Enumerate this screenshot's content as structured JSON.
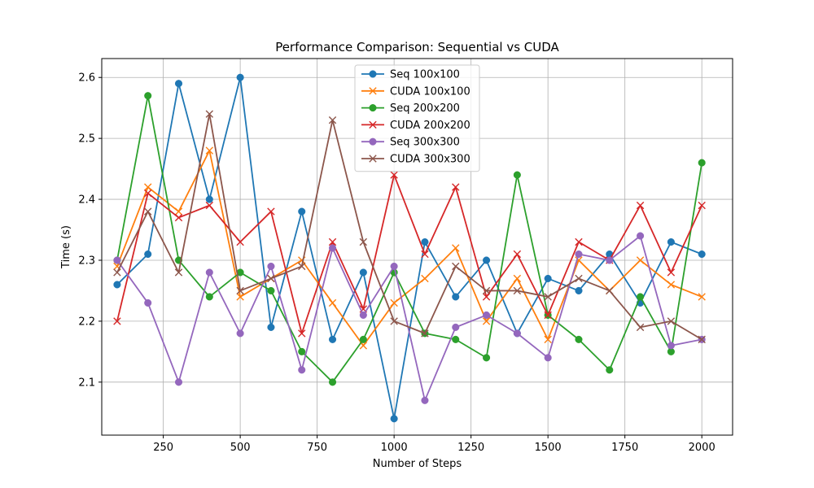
{
  "chart_data": {
    "type": "line",
    "title": "Performance Comparison: Sequential vs CUDA",
    "xlabel": "Number of Steps",
    "ylabel": "Time (s)",
    "xlim": [
      50,
      2100
    ],
    "ylim": [
      2.013,
      2.631
    ],
    "xticks": [
      250,
      500,
      750,
      1000,
      1250,
      1500,
      1750,
      2000
    ],
    "yticks": [
      2.1,
      2.2,
      2.3,
      2.4,
      2.5,
      2.6
    ],
    "xtick_labels": [
      "250",
      "500",
      "750",
      "1000",
      "1250",
      "1500",
      "1750",
      "2000"
    ],
    "ytick_labels": [
      "2.1",
      "2.2",
      "2.3",
      "2.4",
      "2.5",
      "2.6"
    ],
    "grid": true,
    "legend_position": "top-center",
    "x": [
      100,
      200,
      300,
      400,
      500,
      600,
      700,
      800,
      900,
      1000,
      1100,
      1200,
      1300,
      1400,
      1500,
      1600,
      1700,
      1800,
      1900,
      2000
    ],
    "series": [
      {
        "name": "Seq 100x100",
        "color": "#1f77b4",
        "marker": "circle",
        "values": [
          2.26,
          2.31,
          2.59,
          2.4,
          2.6,
          2.19,
          2.38,
          2.17,
          2.28,
          2.04,
          2.33,
          2.24,
          2.3,
          2.18,
          2.27,
          2.25,
          2.31,
          2.23,
          2.33,
          2.31
        ]
      },
      {
        "name": "CUDA 100x100",
        "color": "#ff7f0e",
        "marker": "x",
        "values": [
          2.29,
          2.42,
          2.38,
          2.48,
          2.24,
          2.27,
          2.3,
          2.23,
          2.16,
          2.23,
          2.27,
          2.32,
          2.2,
          2.27,
          2.17,
          2.3,
          2.25,
          2.3,
          2.26,
          2.24
        ]
      },
      {
        "name": "Seq 200x200",
        "color": "#2ca02c",
        "marker": "circle",
        "values": [
          2.3,
          2.57,
          2.3,
          2.24,
          2.28,
          2.25,
          2.15,
          2.1,
          2.17,
          2.28,
          2.18,
          2.17,
          2.14,
          2.44,
          2.21,
          2.17,
          2.12,
          2.24,
          2.15,
          2.46
        ]
      },
      {
        "name": "CUDA 200x200",
        "color": "#d62728",
        "marker": "x",
        "values": [
          2.2,
          2.41,
          2.37,
          2.39,
          2.33,
          2.38,
          2.18,
          2.33,
          2.22,
          2.44,
          2.31,
          2.42,
          2.24,
          2.31,
          2.21,
          2.33,
          2.3,
          2.39,
          2.28,
          2.39
        ]
      },
      {
        "name": "Seq 300x300",
        "color": "#9467bd",
        "marker": "circle",
        "values": [
          2.3,
          2.23,
          2.1,
          2.28,
          2.18,
          2.29,
          2.12,
          2.32,
          2.21,
          2.29,
          2.07,
          2.19,
          2.21,
          2.18,
          2.14,
          2.31,
          2.3,
          2.34,
          2.16,
          2.17
        ]
      },
      {
        "name": "CUDA 300x300",
        "color": "#8c564b",
        "marker": "x",
        "values": [
          2.28,
          2.38,
          2.28,
          2.54,
          2.25,
          2.27,
          2.29,
          2.53,
          2.33,
          2.2,
          2.18,
          2.29,
          2.25,
          2.25,
          2.24,
          2.27,
          2.25,
          2.19,
          2.2,
          2.17
        ]
      }
    ]
  }
}
